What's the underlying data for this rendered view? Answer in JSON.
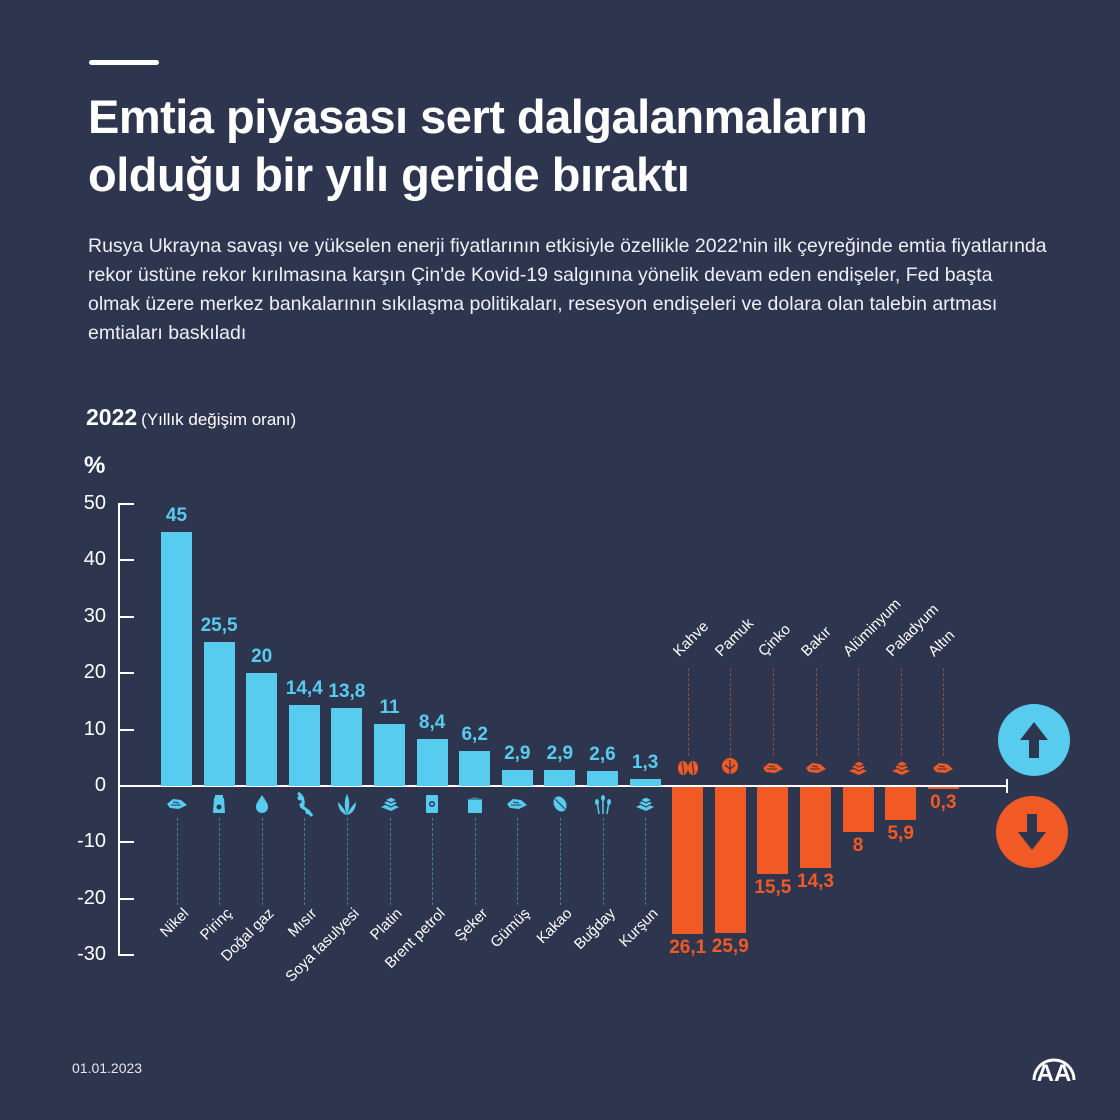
{
  "header": {
    "title_line1": "Emtia piyasası sert dalgalanmaların",
    "title_line2": "olduğu bir yılı geride bıraktı",
    "subtitle": "Rusya Ukrayna savaşı ve yükselen enerji fiyatlarının etkisiyle özellikle 2022'nin ilk çeyreğinde emtia fiyatlarında rekor üstüne rekor kırılmasına karşın Çin'de Kovid-19 salgınına yönelik devam eden endişeler, Fed başta olmak üzere merkez bankalarının sıkılaşma politikaları, resesyon endişeleri ve dolara olan talebin artması emtiaları baskıladı"
  },
  "chart_header": {
    "year": "2022",
    "note": "(Yıllık değişim oranı)",
    "unit": "%"
  },
  "colors": {
    "background": "#2e354f",
    "positive": "#58ccef",
    "negative": "#f15a24",
    "axis": "#ffffff"
  },
  "legend": {
    "up_icon": "arrow-up-icon",
    "down_icon": "arrow-down-icon"
  },
  "footer": {
    "date": "01.01.2023",
    "logo": "AA"
  },
  "chart_data": {
    "type": "bar",
    "title": "2022 (Yıllık değişim oranı)",
    "xlabel": "",
    "ylabel": "%",
    "ylim": [
      -30,
      50
    ],
    "yticks": [
      50,
      40,
      30,
      20,
      10,
      0,
      -10,
      -20,
      -30
    ],
    "grid": false,
    "legend_position": "right (up/down arrow icons)",
    "categories": [
      "Nikel",
      "Pirinç",
      "Doğal gaz",
      "Mısır",
      "Soya fasulyesi",
      "Platin",
      "Brent petrol",
      "Şeker",
      "Gümüş",
      "Kakao",
      "Buğday",
      "Kurşun",
      "Kahve",
      "Pamuk",
      "Çinko",
      "Bakır",
      "Alüminyum",
      "Paladyum",
      "Altın"
    ],
    "values": [
      45,
      25.5,
      20,
      14.4,
      13.8,
      11,
      8.4,
      6.2,
      2.9,
      2.9,
      2.6,
      1.3,
      -26.1,
      -25.9,
      -15.5,
      -14.3,
      -8,
      -5.9,
      -0.3
    ],
    "labels": [
      "45",
      "25,5",
      "20",
      "14,4",
      "13,8",
      "11",
      "8,4",
      "6,2",
      "2,9",
      "2,9",
      "2,6",
      "1,3",
      "26,1",
      "25,9",
      "15,5",
      "14,3",
      "8",
      "5,9",
      "0,3"
    ],
    "icons": [
      "metal-ore-icon",
      "rice-sack-icon",
      "gas-flame-icon",
      "soybean-icon",
      "corn-icon",
      "metal-bars-icon",
      "oil-barrel-icon",
      "sugar-sack-icon",
      "metal-ore-icon",
      "cocoa-pod-icon",
      "wheat-icon",
      "metal-bars-icon",
      "coffee-beans-icon",
      "cotton-icon",
      "metal-ore-icon",
      "metal-ore-icon",
      "metal-bars-icon",
      "metal-bars-icon",
      "metal-ore-icon"
    ]
  }
}
